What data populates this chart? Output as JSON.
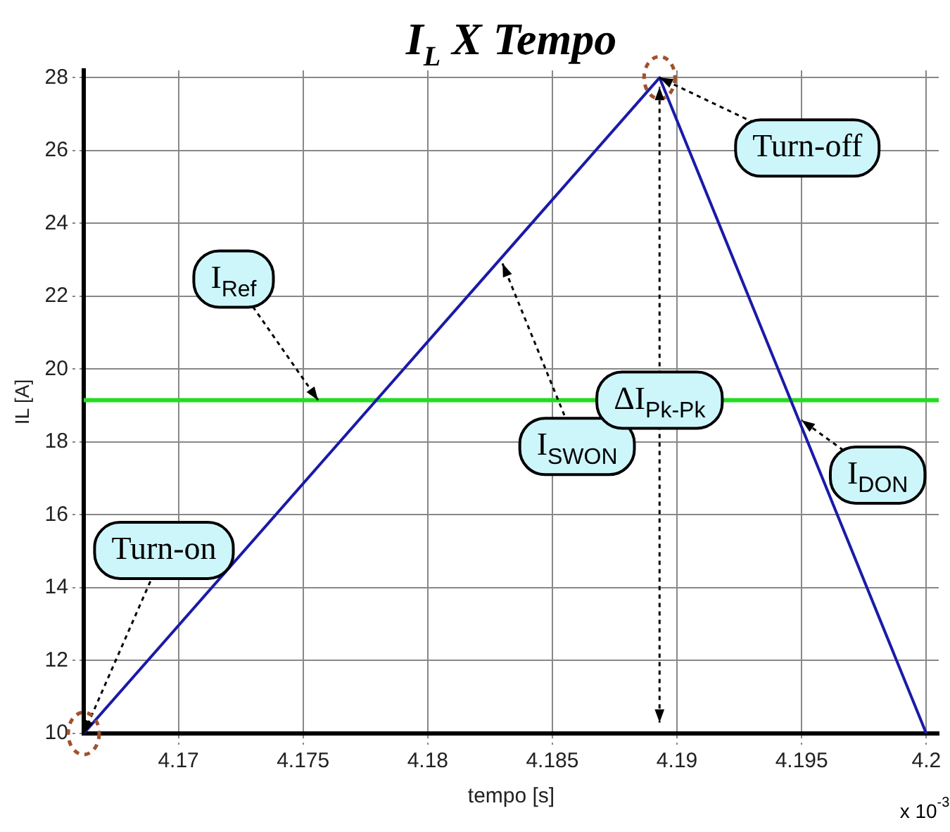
{
  "chart_data": {
    "type": "line",
    "title": "I$_{L}$ X Tempo",
    "xlabel": "tempo [s]",
    "ylabel": "IL [A]",
    "x": [
      4.1662,
      4.1893,
      4.2
    ],
    "series": [
      {
        "color": "#1a1aa8",
        "values": [
          10,
          28,
          10
        ]
      }
    ],
    "xlim": [
      4.1662,
      4.2005
    ],
    "xticks": [
      4.17,
      4.175,
      4.18,
      4.185,
      4.19,
      4.195,
      4.2
    ],
    "ylim": [
      10,
      28.2
    ],
    "yticks": [
      10,
      12,
      14,
      16,
      18,
      20,
      22,
      24,
      26,
      28
    ],
    "grid": true,
    "legend": false,
    "line_style": "solid",
    "ref_lines": [
      {
        "axis": "y",
        "value": 19.15,
        "color": "#22dd22"
      }
    ],
    "annotations": [
      {
        "text": "I$_{Ref}$",
        "x": 4.1756,
        "y": 19.15
      },
      {
        "text": "Turn-on",
        "x": 4.1662,
        "y": 10
      },
      {
        "text": "Turn-off",
        "x": 4.1893,
        "y": 28
      },
      {
        "text": "I$_{SWON}$",
        "x": 4.183,
        "y": 22.9
      },
      {
        "text": "I$_{DON}$",
        "x": 4.195,
        "y": 18.6
      },
      {
        "text": "ΔI$_{Pk-Pk}$",
        "x": 4.1893,
        "y": 19.15
      },
      "x 10$^{-3}$"
    ]
  }
}
